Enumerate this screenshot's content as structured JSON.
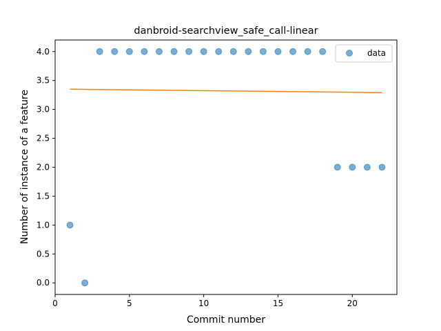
{
  "chart_data": {
    "type": "scatter",
    "title": "danbroid-searchview_safe_call-linear",
    "xlabel": "Commit number",
    "ylabel": "Number of instance of a feature",
    "xlim": [
      0,
      23
    ],
    "ylim": [
      -0.2,
      4.2
    ],
    "xticks": [
      0,
      5,
      10,
      15,
      20
    ],
    "yticks": [
      0.0,
      0.5,
      1.0,
      1.5,
      2.0,
      2.5,
      3.0,
      3.5,
      4.0
    ],
    "grid": false,
    "legend": {
      "placement": "top-right",
      "entries": [
        "data"
      ]
    },
    "series": [
      {
        "name": "data",
        "kind": "scatter",
        "color": "#1f77b4",
        "x": [
          1,
          2,
          3,
          4,
          5,
          6,
          7,
          8,
          9,
          10,
          11,
          12,
          13,
          14,
          15,
          16,
          17,
          18,
          19,
          20,
          21,
          22
        ],
        "y": [
          1,
          0,
          4,
          4,
          4,
          4,
          4,
          4,
          4,
          4,
          4,
          4,
          4,
          4,
          4,
          4,
          4,
          4,
          2,
          2,
          2,
          2
        ]
      },
      {
        "kind": "line",
        "color": "#ff7f0e",
        "x": [
          1,
          22
        ],
        "y": [
          3.35,
          3.29
        ]
      }
    ]
  }
}
